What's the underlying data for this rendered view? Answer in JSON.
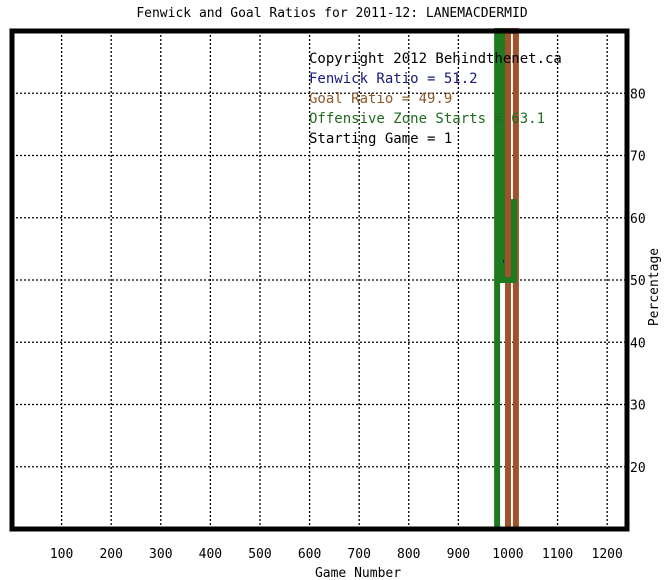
{
  "chart_data": {
    "type": "line",
    "title": "Fenwick and Goal Ratios for 2011-12: LANEMACDERMID",
    "xlabel": "Game Number",
    "ylabel": "Percentage",
    "xlim": [
      0,
      1240
    ],
    "ylim": [
      10,
      90
    ],
    "x_ticks": [
      100,
      200,
      300,
      400,
      500,
      600,
      700,
      800,
      900,
      1000,
      1100,
      1200
    ],
    "y_ticks": [
      20,
      30,
      40,
      50,
      60,
      70,
      80
    ],
    "grid": true,
    "annotations": [
      {
        "key": "copyright",
        "text": "Copyright 2012 Behindthenet.ca",
        "color": "#000000"
      },
      {
        "key": "fenwick",
        "text": "Fenwick Ratio = 51.2",
        "color": "#1a1a7a"
      },
      {
        "key": "goal",
        "text": "Goal Ratio = 49.9",
        "color": "#8b5a2b"
      },
      {
        "key": "ozs",
        "text": "Offensive Zone Starts = 63.1",
        "color": "#1e6b1e"
      },
      {
        "key": "start",
        "text": "Starting Game = 1",
        "color": "#000000"
      }
    ],
    "series": [
      {
        "key": "goal",
        "color": "#a0522d",
        "points": [
          [
            1000,
            10
          ],
          [
            1000,
            90
          ],
          [
            1016,
            90
          ],
          [
            1016,
            10
          ]
        ]
      },
      {
        "key": "ozs",
        "color": "#1e7a1e",
        "points": [
          [
            978,
            10
          ],
          [
            978,
            90
          ],
          [
            988,
            90
          ],
          [
            988,
            50
          ],
          [
            1012,
            50
          ],
          [
            1012,
            63
          ]
        ]
      },
      {
        "key": "fenwick",
        "color": "#1a1a6e",
        "points": [
          [
            990,
            53
          ],
          [
            992,
            53
          ]
        ]
      }
    ]
  }
}
